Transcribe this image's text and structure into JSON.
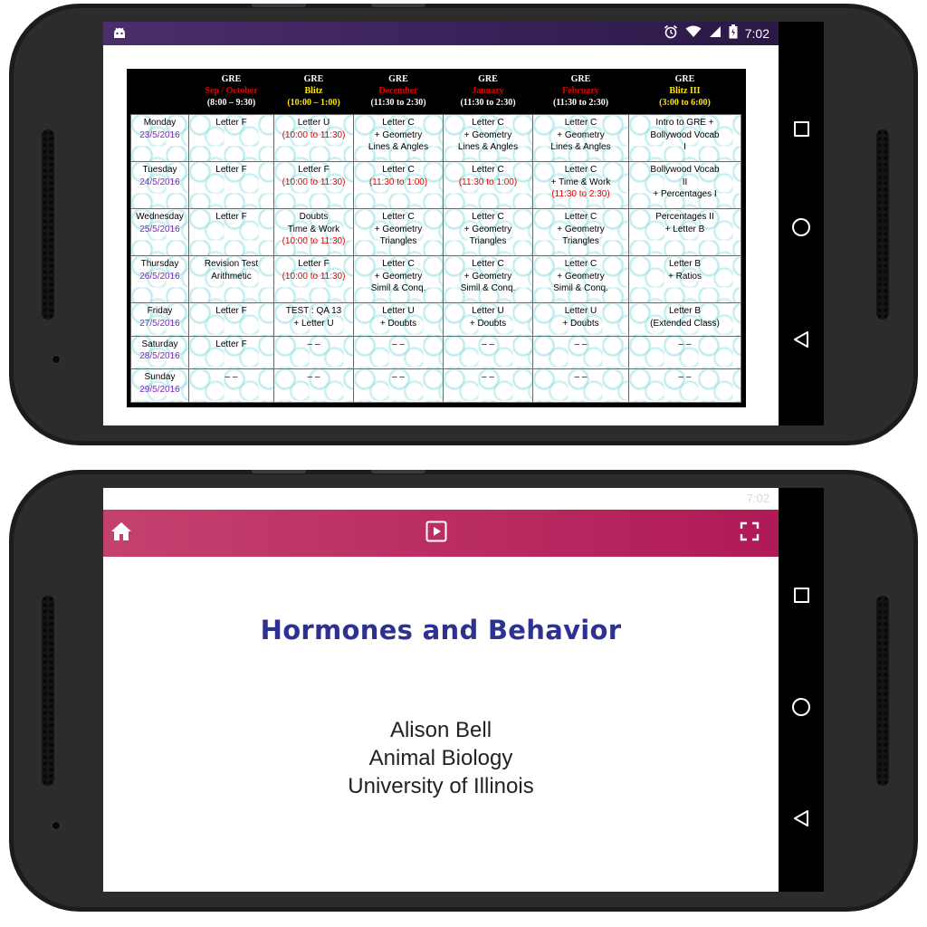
{
  "status_bar": {
    "time": "7:02",
    "icons": [
      "android-icon",
      "alarm-icon",
      "wifi-icon",
      "signal-icon",
      "battery-icon"
    ]
  },
  "schedule": {
    "headers": [
      {
        "line1": "",
        "line2": "",
        "line3": ""
      },
      {
        "line1": "GRE",
        "line2": "Sep / October",
        "line2_color": "#e00000",
        "line3": "(8:00 – 9:30)"
      },
      {
        "line1": "GRE",
        "line2": "Blitz",
        "line2_color": "#ffe600",
        "line3": "(10:00 – 1:00)",
        "line3_color": "#ffe600"
      },
      {
        "line1": "GRE",
        "line2": "December",
        "line2_color": "#e00000",
        "line3": "(11:30 to 2:30)"
      },
      {
        "line1": "GRE",
        "line2": "January",
        "line2_color": "#e00000",
        "line3": "(11:30 to 2:30)"
      },
      {
        "line1": "GRE",
        "line2": "February",
        "line2_color": "#e00000",
        "line3": "(11:30 to 2:30)"
      },
      {
        "line1": "GRE",
        "line2": "Blitz III",
        "line2_color": "#ffe600",
        "line3": "(3:00 to 6:00)",
        "line3_color": "#ffe600"
      }
    ],
    "rows": [
      {
        "day": "Monday",
        "date": "23/5/2016",
        "cells": [
          [
            {
              "t": "Letter F"
            }
          ],
          [
            {
              "t": "Letter U"
            },
            {
              "t": "(10:00 to 11:30)",
              "red": true
            }
          ],
          [
            {
              "t": "Letter C"
            },
            {
              "t": "+ Geometry"
            },
            {
              "t": "Lines & Angles"
            }
          ],
          [
            {
              "t": "Letter C"
            },
            {
              "t": "+ Geometry"
            },
            {
              "t": "Lines & Angles"
            }
          ],
          [
            {
              "t": "Letter C"
            },
            {
              "t": "+ Geometry"
            },
            {
              "t": "Lines & Angles"
            }
          ],
          [
            {
              "t": "Intro to GRE +"
            },
            {
              "t": "Bollywood Vocab"
            },
            {
              "t": "I"
            }
          ]
        ]
      },
      {
        "day": "Tuesday",
        "date": "24/5/2016",
        "cells": [
          [
            {
              "t": "Letter F"
            }
          ],
          [
            {
              "t": "Letter  F"
            },
            {
              "t": "(10:00 to 11:30)",
              "red": true
            }
          ],
          [
            {
              "t": "Letter C"
            },
            {
              "t": "(11:30 to 1:00)",
              "red": true
            }
          ],
          [
            {
              "t": "Letter C"
            },
            {
              "t": "(11:30 to 1:00)",
              "red": true
            }
          ],
          [
            {
              "t": "Letter C"
            },
            {
              "t": "+ Time & Work"
            },
            {
              "t": "(11:30 to 2:30)",
              "red": true
            }
          ],
          [
            {
              "t": "Bollywood Vocab"
            },
            {
              "t": "II"
            },
            {
              "t": "+ Percentages I"
            }
          ]
        ]
      },
      {
        "day": "Wednesday",
        "date": "25/5/2016",
        "cells": [
          [
            {
              "t": "Letter F"
            }
          ],
          [
            {
              "t": "Doubts"
            },
            {
              "t": "Time & Work"
            },
            {
              "t": "(10:00 to 11:30)",
              "red": true
            }
          ],
          [
            {
              "t": "Letter C"
            },
            {
              "t": "+ Geometry"
            },
            {
              "t": "Triangles"
            }
          ],
          [
            {
              "t": "Letter C"
            },
            {
              "t": "+ Geometry"
            },
            {
              "t": "Triangles"
            }
          ],
          [
            {
              "t": "Letter C"
            },
            {
              "t": "+ Geometry"
            },
            {
              "t": "Triangles"
            }
          ],
          [
            {
              "t": "Percentages II"
            },
            {
              "t": "+ Letter B"
            }
          ]
        ]
      },
      {
        "day": "Thursday",
        "date": "26/5/2016",
        "cells": [
          [
            {
              "t": "Revision Test"
            },
            {
              "t": "Arithmetic"
            }
          ],
          [
            {
              "t": "Letter  F"
            },
            {
              "t": "(10:00 to 11:30)",
              "red": true
            }
          ],
          [
            {
              "t": "Letter C"
            },
            {
              "t": "+ Geometry"
            },
            {
              "t": "Simil & Conq."
            }
          ],
          [
            {
              "t": "Letter C"
            },
            {
              "t": "+ Geometry"
            },
            {
              "t": "Simil & Conq."
            }
          ],
          [
            {
              "t": "Letter C"
            },
            {
              "t": "+ Geometry"
            },
            {
              "t": "Simil & Conq."
            }
          ],
          [
            {
              "t": "Letter B"
            },
            {
              "t": "+ Ratios"
            }
          ]
        ]
      },
      {
        "day": "Friday",
        "date": "27/5/2016",
        "cells": [
          [
            {
              "t": "Letter F"
            }
          ],
          [
            {
              "t": "TEST : QA 13"
            },
            {
              "t": "+ Letter U"
            }
          ],
          [
            {
              "t": "Letter U"
            },
            {
              "t": "+ Doubts"
            }
          ],
          [
            {
              "t": "Letter U"
            },
            {
              "t": "+ Doubts"
            }
          ],
          [
            {
              "t": "Letter U"
            },
            {
              "t": "+ Doubts"
            }
          ],
          [
            {
              "t": "Letter B"
            },
            {
              "t": "(Extended Class)"
            }
          ]
        ]
      },
      {
        "day": "Saturday",
        "date": "28/5/2016",
        "cells": [
          [
            {
              "t": "Letter F"
            }
          ],
          [
            {
              "t": "– –"
            }
          ],
          [
            {
              "t": "– –"
            }
          ],
          [
            {
              "t": "– –"
            }
          ],
          [
            {
              "t": "– –"
            }
          ],
          [
            {
              "t": "– –"
            }
          ]
        ]
      },
      {
        "day": "Sunday",
        "date": "29/5/2016",
        "cells": [
          [
            {
              "t": "– –"
            }
          ],
          [
            {
              "t": "– –"
            }
          ],
          [
            {
              "t": "– –"
            }
          ],
          [
            {
              "t": "– –"
            }
          ],
          [
            {
              "t": "– –"
            }
          ],
          [
            {
              "t": "– –"
            }
          ]
        ]
      }
    ]
  },
  "presentation": {
    "status_time": "7:02",
    "toolbar": {
      "home_icon": "home-icon",
      "play_icon": "play-icon",
      "fullscreen_icon": "fullscreen-icon"
    },
    "slide": {
      "title": "Hormones and Behavior",
      "lines": [
        "Alison Bell",
        "Animal Biology",
        "University of Illinois"
      ]
    },
    "accent_color": "#b01a56"
  },
  "nav_buttons": [
    "recents-icon",
    "home-circle-icon",
    "back-icon"
  ]
}
